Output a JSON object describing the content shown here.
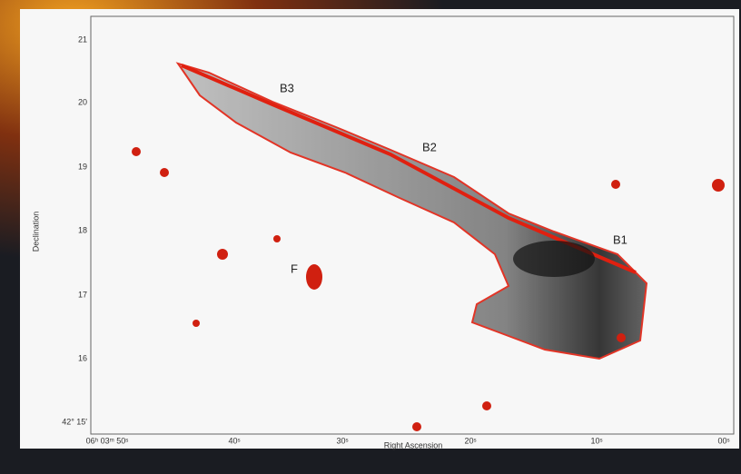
{
  "plot": {
    "y_axis_label": "Declination",
    "x_axis_label": "Right Ascension",
    "y_ticks": [
      "21",
      "20",
      "19",
      "18",
      "17",
      "16",
      "42° 15′"
    ],
    "x_ticks": [
      "06ʰ 03ᵐ 50ˢ",
      "40ˢ",
      "30ˢ",
      "20ˢ",
      "10ˢ",
      "00ˢ"
    ],
    "annotations": [
      "B3",
      "B2",
      "B1",
      "F"
    ]
  }
}
